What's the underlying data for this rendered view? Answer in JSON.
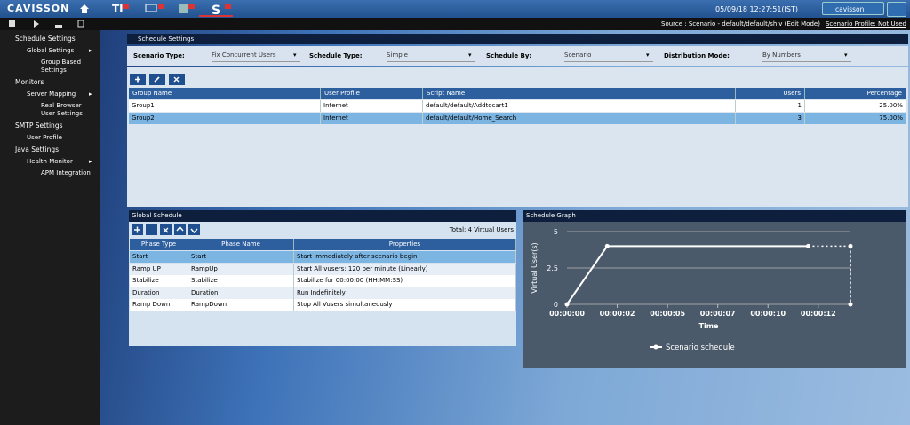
{
  "header": {
    "logo": "CAVISSON",
    "datetime": "05/09/18 12:27:51(IST)",
    "user": "cavisson"
  },
  "subheader": {
    "source": "Source : Scenario - default/default/shiv (Edit Mode)",
    "profile": "Scenario Profile: Not Used"
  },
  "sidebar": [
    {
      "title": "Schedule Settings",
      "items": [
        {
          "label": "Global Settings",
          "items": [
            {
              "label": "Group Based Settings"
            }
          ]
        }
      ]
    },
    {
      "title": "Monitors",
      "items": [
        {
          "label": "Server Mapping",
          "items": [
            {
              "label": "Real Browser User Settings"
            }
          ]
        }
      ]
    },
    {
      "title": "SMTP Settings",
      "items": [
        {
          "label": "User Profile"
        }
      ]
    },
    {
      "title": "Java Settings",
      "items": [
        {
          "label": "Health Monitor",
          "items": [
            {
              "label": "APM Integration"
            }
          ]
        }
      ]
    }
  ],
  "breadcrumb": "Schedule Settings",
  "filters": [
    {
      "label": "Scenario Type:",
      "value": "Fix Concurrent Users"
    },
    {
      "label": "Schedule Type:",
      "value": "Simple"
    },
    {
      "label": "Schedule By:",
      "value": "Scenario"
    },
    {
      "label": "Distribution Mode:",
      "value": "By Numbers"
    }
  ],
  "group_table": {
    "columns": [
      "Group Name",
      "User Profile",
      "Script Name",
      "Users",
      "Percentage"
    ],
    "rows": [
      [
        "Group1",
        "Internet",
        "default/default/Addtocart1",
        "1",
        "25.00%"
      ],
      [
        "Group2",
        "Internet",
        "default/default/Home_Search",
        "3",
        "75.00%"
      ]
    ]
  },
  "global_schedule": {
    "title": "Global Schedule",
    "total": "Total: 4 Virtual Users",
    "columns": [
      "Phase Type",
      "Phase Name",
      "Properties"
    ],
    "rows": [
      [
        "Start",
        "Start",
        "Start immediately after scenario begin"
      ],
      [
        "Ramp UP",
        "RampUp",
        "Start All vusers: 120 per minute (Linearly)"
      ],
      [
        "Stabilize",
        "Stabilize",
        "Stabilize for 00:00:00 (HH:MM:SS)"
      ],
      [
        "Duration",
        "Duration",
        "Run Indefinitely"
      ],
      [
        "Ramp Down",
        "RampDown",
        "Stop All Vusers simultaneously"
      ]
    ]
  },
  "chart_data": {
    "type": "line",
    "title": "Schedule Graph",
    "x_label": "Time",
    "y_label": "Virtual User(s)",
    "x": [
      0,
      2,
      12,
      14.1,
      14.1
    ],
    "series": [
      {
        "name": "Scenario schedule",
        "color": "#ffffff",
        "values": [
          0,
          4,
          4,
          4,
          0
        ]
      }
    ],
    "xlim": [
      0,
      14.1
    ],
    "xticks": [
      {
        "value": 0,
        "label": "00:00:00"
      },
      {
        "value": 2.5,
        "label": "00:00:02"
      },
      {
        "value": 5,
        "label": "00:00:05"
      },
      {
        "value": 7.5,
        "label": "00:00:07"
      },
      {
        "value": 10,
        "label": "00:00:10"
      },
      {
        "value": 12.5,
        "label": "00:00:12"
      }
    ],
    "ylim": [
      0,
      5
    ],
    "yticks": [
      0,
      2.5,
      5
    ],
    "grid": true
  }
}
